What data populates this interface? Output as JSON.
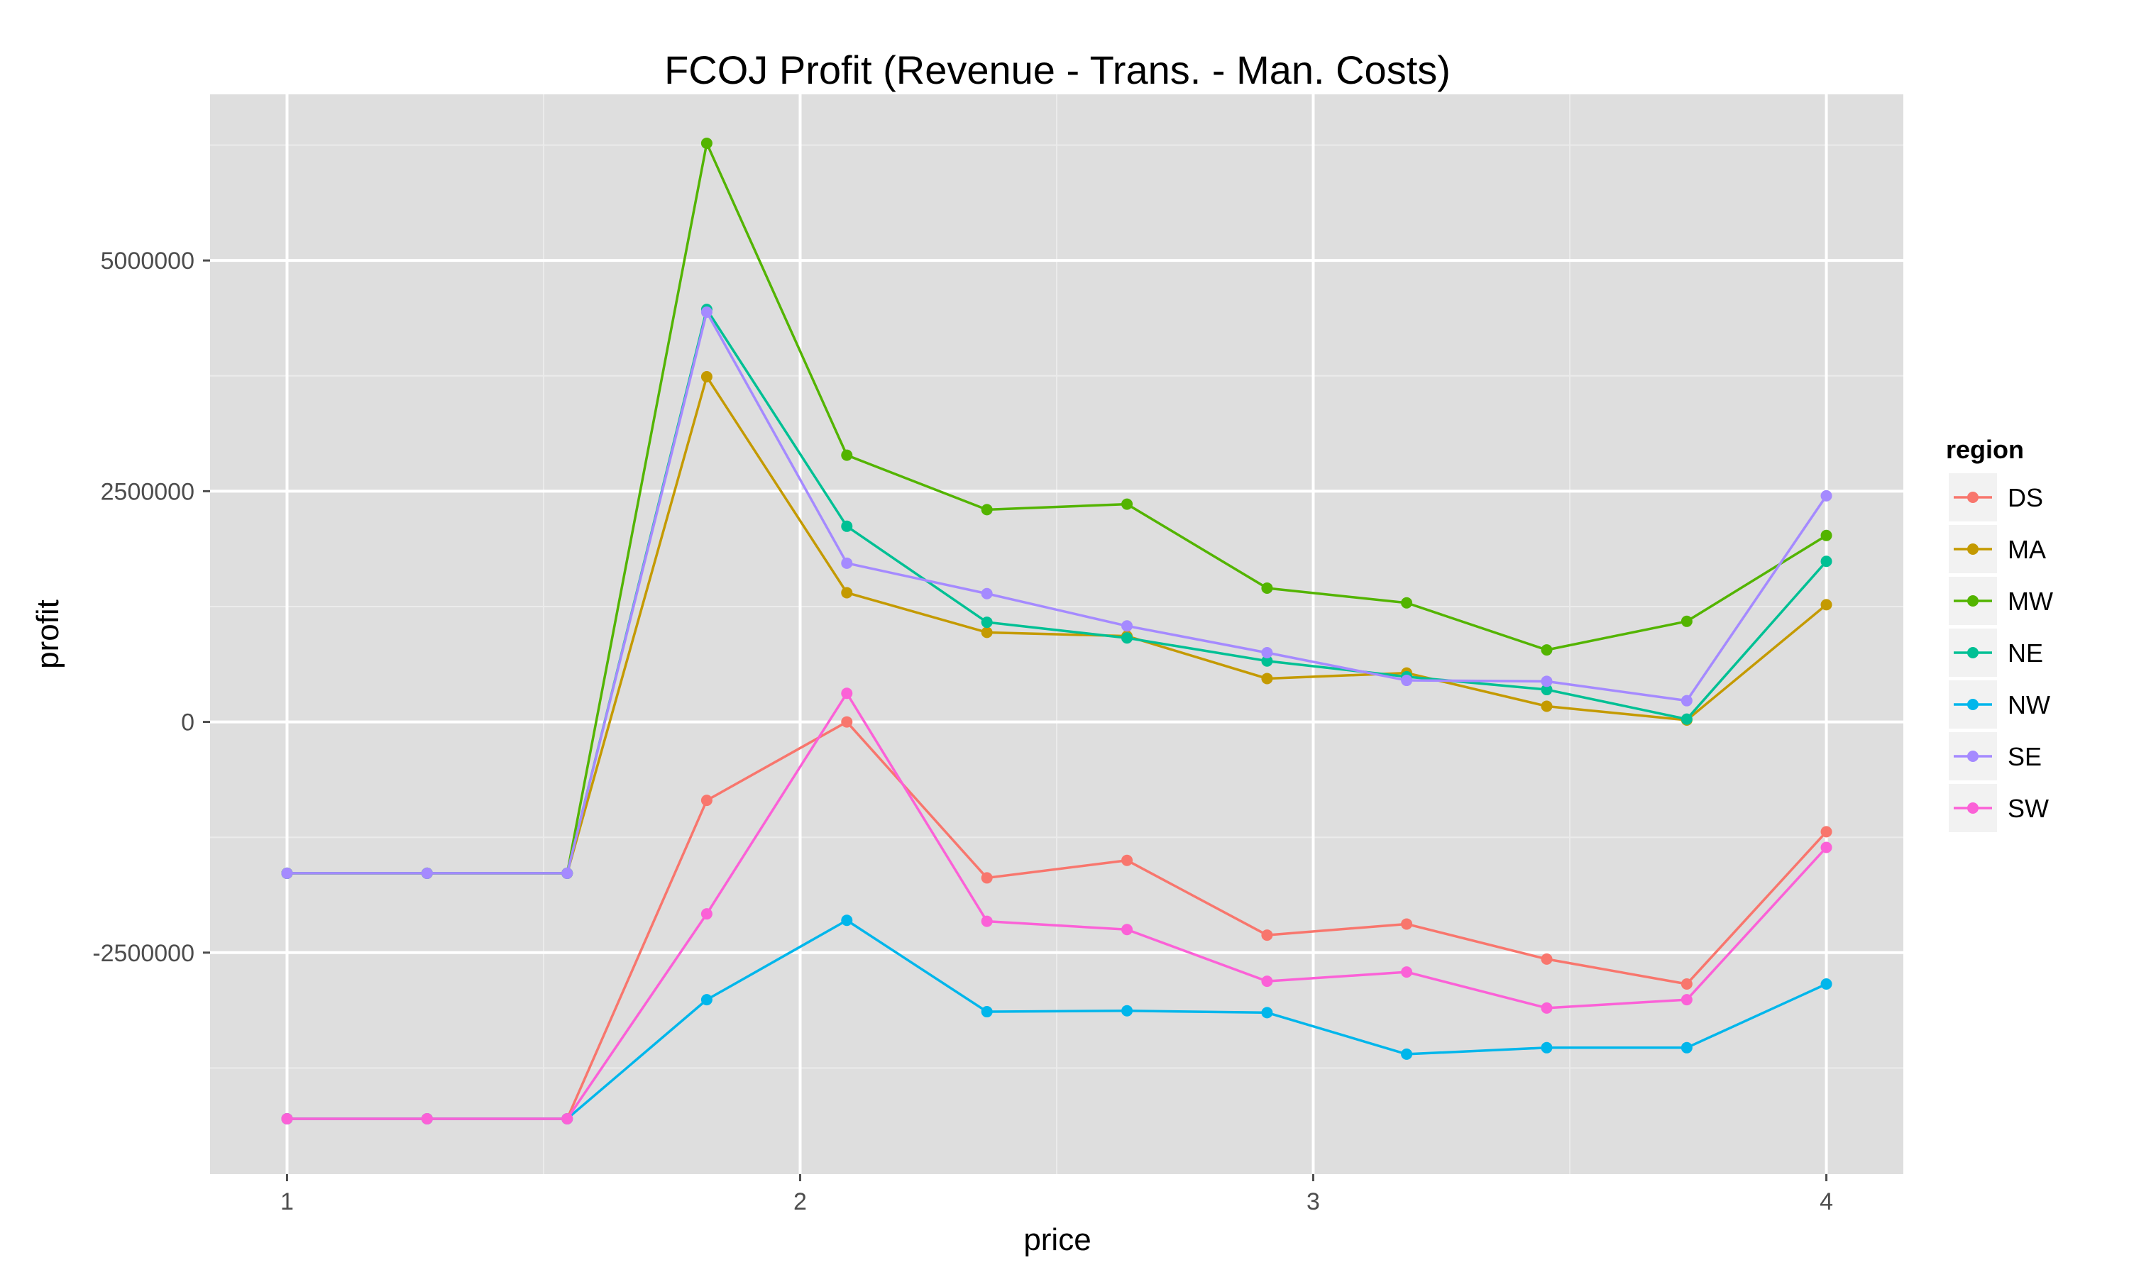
{
  "chart_data": {
    "type": "line",
    "title": "FCOJ Profit (Revenue - Trans. - Man. Costs)",
    "xlabel": "price",
    "ylabel": "profit",
    "xlim": [
      0.85,
      4.15
    ],
    "ylim": [
      -4900000,
      6800000
    ],
    "x_ticks": [
      1,
      2,
      3,
      4
    ],
    "x_tick_labels": [
      "1",
      "2",
      "3",
      "4"
    ],
    "y_ticks": [
      -2500000,
      0,
      2500000,
      5000000
    ],
    "y_tick_labels": [
      "-2500000",
      "0",
      "2500000",
      "5000000"
    ],
    "grid": true,
    "background": "#dedede",
    "markers": true,
    "legend": {
      "title": "region",
      "position": "right"
    },
    "x": [
      1.0,
      1.273,
      1.546,
      1.818,
      2.091,
      2.364,
      2.637,
      2.91,
      3.182,
      3.455,
      3.728,
      4.0
    ],
    "series": [
      {
        "name": "DS",
        "color": "#F8766D",
        "values": [
          -4300000,
          -4300000,
          -4300000,
          -850000,
          0,
          -1690000,
          -1500000,
          -2310000,
          -2190000,
          -2570000,
          -2840000,
          -1190000
        ]
      },
      {
        "name": "MA",
        "color": "#C49A00",
        "values": [
          -1640000,
          -1640000,
          -1640000,
          3740000,
          1400000,
          970000,
          930000,
          470000,
          530000,
          170000,
          20000,
          1270000
        ]
      },
      {
        "name": "MW",
        "color": "#53B400",
        "values": [
          -1640000,
          -1640000,
          -1640000,
          6270000,
          2890000,
          2300000,
          2360000,
          1450000,
          1290000,
          780000,
          1090000,
          2020000
        ]
      },
      {
        "name": "NE",
        "color": "#00C094",
        "values": [
          -1640000,
          -1640000,
          -1640000,
          4470000,
          2120000,
          1080000,
          910000,
          660000,
          490000,
          350000,
          30000,
          1740000
        ]
      },
      {
        "name": "NW",
        "color": "#00B6EB",
        "values": [
          -4300000,
          -4300000,
          -4300000,
          -3010000,
          -2150000,
          -3140000,
          -3130000,
          -3150000,
          -3600000,
          -3530000,
          -3530000,
          -2840000
        ]
      },
      {
        "name": "SE",
        "color": "#A58AFF",
        "values": [
          -1640000,
          -1640000,
          -1640000,
          4440000,
          1720000,
          1390000,
          1040000,
          750000,
          450000,
          440000,
          230000,
          2450000
        ]
      },
      {
        "name": "SW",
        "color": "#FB61D7",
        "values": [
          -4300000,
          -4300000,
          -4300000,
          -2080000,
          310000,
          -2160000,
          -2250000,
          -2810000,
          -2710000,
          -3100000,
          -3010000,
          -1360000
        ]
      }
    ]
  }
}
